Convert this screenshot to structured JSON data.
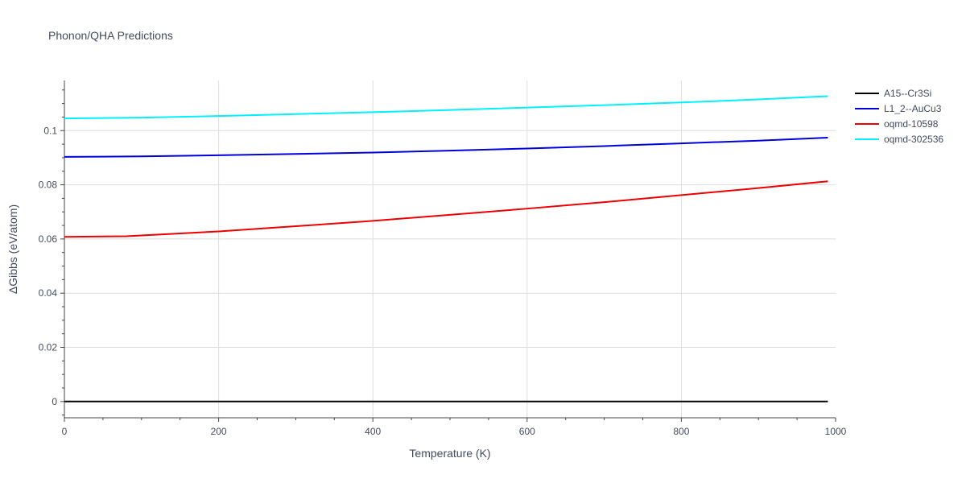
{
  "chart_data": {
    "type": "line",
    "title": "Phonon/QHA Predictions",
    "xlabel": "Temperature (K)",
    "ylabel": "ΔGibbs (eV/atom)",
    "xlim": [
      0,
      1000
    ],
    "ylim": [
      -0.006,
      0.1185
    ],
    "xticks": [
      0,
      200,
      400,
      600,
      800,
      1000
    ],
    "xtick_labels": [
      "0",
      "200",
      "400",
      "600",
      "800",
      "1000"
    ],
    "yticks": [
      0,
      0.02,
      0.04,
      0.06,
      0.08,
      0.1
    ],
    "ytick_labels": [
      "0",
      "0.02",
      "0.04",
      "0.06",
      "0.08",
      "0.1"
    ],
    "grid": true,
    "legend_position": "top-right",
    "series": [
      {
        "name": "A15--Cr3Si",
        "color": "#000000",
        "x": [
          0,
          100,
          200,
          300,
          400,
          500,
          600,
          700,
          800,
          900,
          990
        ],
        "y": [
          0,
          0,
          0,
          0,
          0,
          0,
          0,
          0,
          0,
          0,
          0
        ]
      },
      {
        "name": "L1_2--AuCu3",
        "color": "#0000dd",
        "x": [
          0,
          100,
          200,
          300,
          400,
          500,
          600,
          700,
          800,
          900,
          990
        ],
        "y": [
          0.0903,
          0.0905,
          0.0909,
          0.0914,
          0.0919,
          0.0926,
          0.0934,
          0.0943,
          0.0953,
          0.0963,
          0.0974
        ]
      },
      {
        "name": "oqmd-10598",
        "color": "#ee0000",
        "x": [
          0,
          80,
          100,
          200,
          300,
          400,
          500,
          600,
          700,
          800,
          900,
          990
        ],
        "y": [
          0.0608,
          0.061,
          0.0613,
          0.0628,
          0.0647,
          0.0667,
          0.0689,
          0.0712,
          0.0736,
          0.0762,
          0.0788,
          0.0813
        ]
      },
      {
        "name": "oqmd-302536",
        "color": "#00f0ff",
        "x": [
          0,
          100,
          200,
          300,
          400,
          500,
          600,
          700,
          800,
          900,
          990
        ],
        "y": [
          0.1045,
          0.1048,
          0.1054,
          0.1061,
          0.1068,
          0.1076,
          0.1085,
          0.1094,
          0.1104,
          0.1115,
          0.1127
        ]
      }
    ]
  }
}
